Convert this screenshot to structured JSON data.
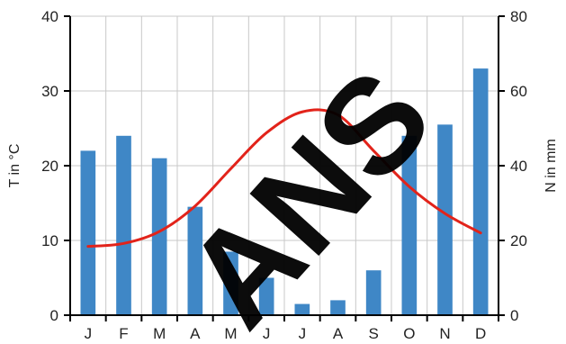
{
  "chart_data": {
    "type": "bar",
    "categories": [
      "J",
      "F",
      "M",
      "A",
      "M",
      "J",
      "J",
      "A",
      "S",
      "O",
      "N",
      "D"
    ],
    "series": [
      {
        "kind": "bar",
        "axis": "right",
        "color": "#3f87c6",
        "values": [
          44,
          48,
          42,
          29,
          17,
          10,
          3,
          4,
          12,
          48,
          51,
          66
        ]
      },
      {
        "kind": "line",
        "axis": "left",
        "color": "#e2231a",
        "values": [
          9.2,
          9.6,
          11.2,
          14.6,
          19.6,
          24.4,
          27.2,
          26.8,
          22.0,
          17.2,
          13.6,
          11.0
        ]
      }
    ],
    "left_axis": {
      "label": "T in °C",
      "ylim": [
        0,
        40
      ],
      "ticks": [
        "0",
        "10",
        "20",
        "30",
        "40"
      ]
    },
    "right_axis": {
      "label": "N in mm",
      "ylim": [
        0,
        80
      ],
      "ticks": [
        "0",
        "20",
        "40",
        "60",
        "80"
      ]
    },
    "grid": true,
    "watermark": "ANS"
  }
}
